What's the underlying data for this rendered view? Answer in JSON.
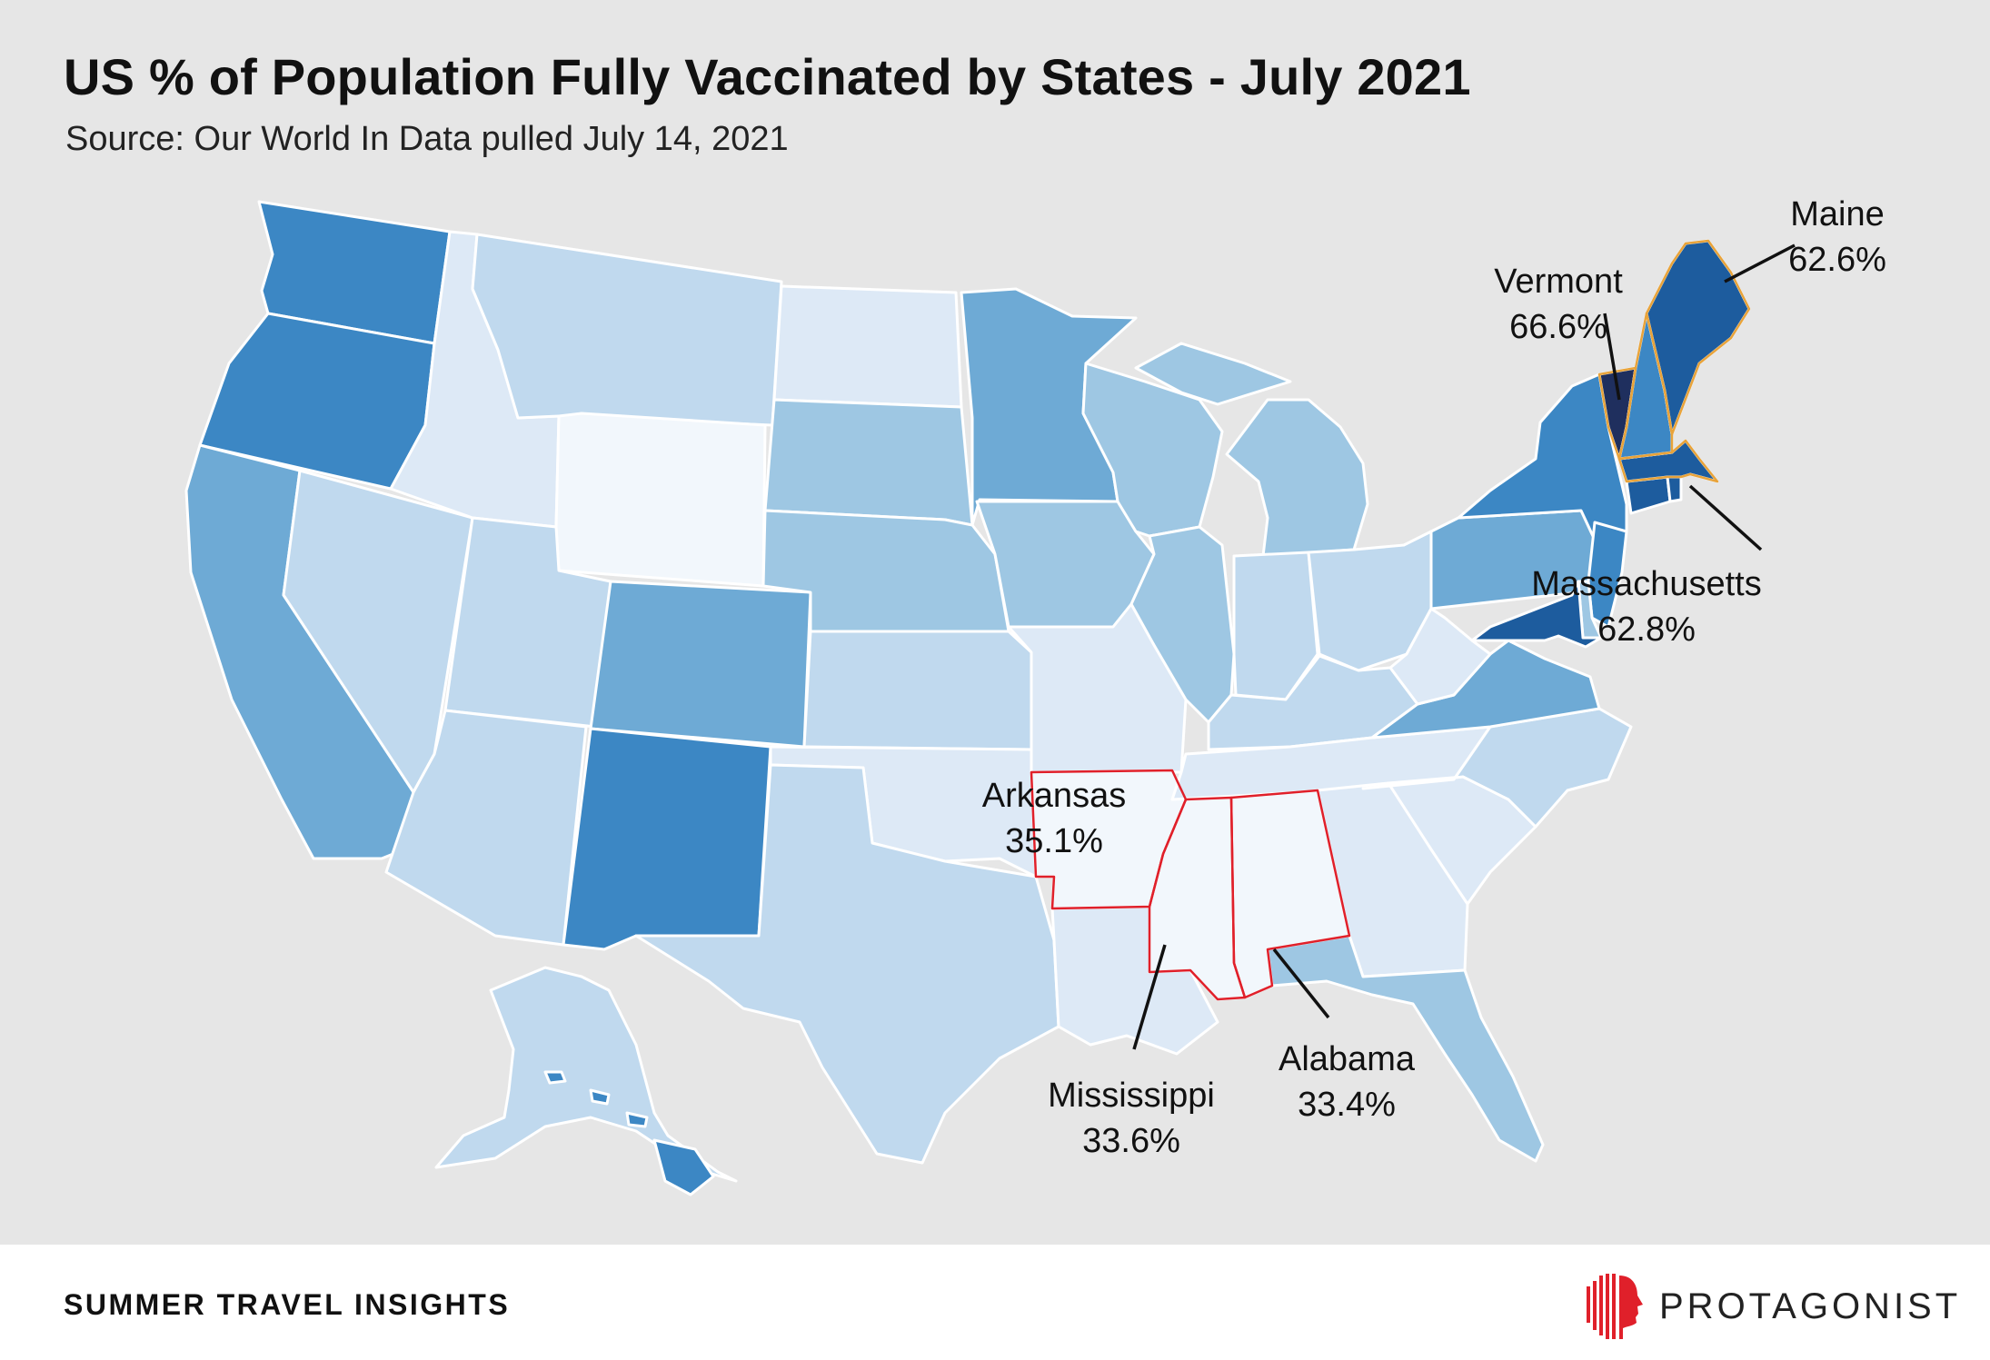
{
  "title": "US % of Population Fully Vaccinated by States - July 2021",
  "subtitle": "Source: Our World In Data pulled July 14, 2021",
  "footer": {
    "label": "SUMMER TRAVEL INSIGHTS",
    "brand": "PROTAGONIST"
  },
  "colors": {
    "background": "#e6e6e6",
    "state_border": "#ffffff",
    "highlight_high": "#e8a33a",
    "highlight_low": "#e0202a",
    "brand": "#e0202a",
    "scale": [
      "#f2f7fc",
      "#dde9f6",
      "#c0d9ee",
      "#9ec7e3",
      "#6eaad5",
      "#3c87c4",
      "#1d5c9e",
      "#1f2f5e"
    ]
  },
  "legend": "none",
  "states": [
    {
      "name": "Washington",
      "tier": 5
    },
    {
      "name": "Oregon",
      "tier": 5
    },
    {
      "name": "California",
      "tier": 4
    },
    {
      "name": "Nevada",
      "tier": 2
    },
    {
      "name": "Idaho",
      "tier": 1
    },
    {
      "name": "Montana",
      "tier": 2
    },
    {
      "name": "Wyoming",
      "tier": 0
    },
    {
      "name": "Utah",
      "tier": 2
    },
    {
      "name": "Arizona",
      "tier": 2
    },
    {
      "name": "Colorado",
      "tier": 4
    },
    {
      "name": "New Mexico",
      "tier": 5
    },
    {
      "name": "North Dakota",
      "tier": 1
    },
    {
      "name": "South Dakota",
      "tier": 3
    },
    {
      "name": "Nebraska",
      "tier": 3
    },
    {
      "name": "Kansas",
      "tier": 2
    },
    {
      "name": "Oklahoma",
      "tier": 1
    },
    {
      "name": "Texas",
      "tier": 2
    },
    {
      "name": "Minnesota",
      "tier": 4
    },
    {
      "name": "Iowa",
      "tier": 3
    },
    {
      "name": "Missouri",
      "tier": 1
    },
    {
      "name": "Arkansas",
      "tier": 0,
      "value": "35.1%",
      "highlight": "low"
    },
    {
      "name": "Louisiana",
      "tier": 1
    },
    {
      "name": "Wisconsin",
      "tier": 3
    },
    {
      "name": "Illinois",
      "tier": 3
    },
    {
      "name": "Michigan",
      "tier": 3
    },
    {
      "name": "Indiana",
      "tier": 2
    },
    {
      "name": "Ohio",
      "tier": 2
    },
    {
      "name": "Kentucky",
      "tier": 2
    },
    {
      "name": "Tennessee",
      "tier": 1
    },
    {
      "name": "Mississippi",
      "tier": 0,
      "value": "33.6%",
      "highlight": "low"
    },
    {
      "name": "Alabama",
      "tier": 0,
      "value": "33.4%",
      "highlight": "low"
    },
    {
      "name": "Georgia",
      "tier": 1
    },
    {
      "name": "Florida",
      "tier": 3
    },
    {
      "name": "South Carolina",
      "tier": 1
    },
    {
      "name": "North Carolina",
      "tier": 2
    },
    {
      "name": "Virginia",
      "tier": 4
    },
    {
      "name": "West Virginia",
      "tier": 1
    },
    {
      "name": "Pennsylvania",
      "tier": 4
    },
    {
      "name": "New York",
      "tier": 5
    },
    {
      "name": "New Jersey",
      "tier": 5
    },
    {
      "name": "Delaware",
      "tier": 3
    },
    {
      "name": "Maryland",
      "tier": 6
    },
    {
      "name": "Connecticut",
      "tier": 6
    },
    {
      "name": "Rhode Island",
      "tier": 6
    },
    {
      "name": "Massachusetts",
      "tier": 6,
      "value": "62.8%",
      "highlight": "high"
    },
    {
      "name": "Vermont",
      "tier": 7,
      "value": "66.6%",
      "highlight": "high"
    },
    {
      "name": "New Hampshire",
      "tier": 5,
      "highlight": "high"
    },
    {
      "name": "Maine",
      "tier": 6,
      "value": "62.6%",
      "highlight": "high"
    },
    {
      "name": "Alaska",
      "tier": 2
    },
    {
      "name": "Hawaii",
      "tier": 5
    }
  ],
  "callouts": [
    {
      "state": "Maine",
      "name": "Maine",
      "value": "62.6%"
    },
    {
      "state": "Vermont",
      "name": "Vermont",
      "value": "66.6%"
    },
    {
      "state": "Massachusetts",
      "name": "Massachusetts",
      "value": "62.8%"
    },
    {
      "state": "Arkansas",
      "name": "Arkansas",
      "value": "35.1%"
    },
    {
      "state": "Mississippi",
      "name": "Mississippi",
      "value": "33.6%"
    },
    {
      "state": "Alabama",
      "name": "Alabama",
      "value": "33.4%"
    }
  ]
}
